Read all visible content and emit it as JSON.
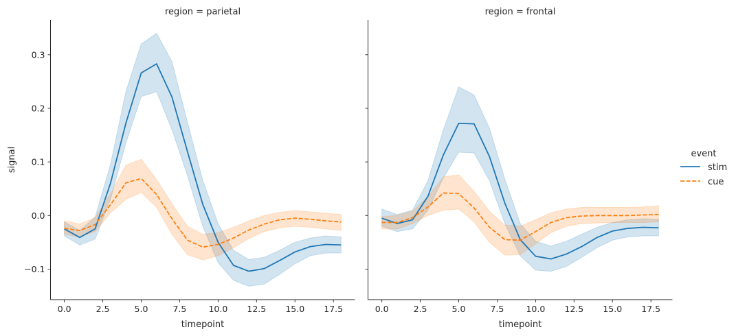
{
  "chart_data": {
    "type": "line",
    "ylabel": "signal",
    "xlabel": "timepoint",
    "xlim": [
      -0.9,
      18.9
    ],
    "ylim": [
      -0.157,
      0.365
    ],
    "xticks": [
      0,
      2.5,
      5,
      7.5,
      10,
      12.5,
      15,
      17.5
    ],
    "xtick_labels": [
      "0.0",
      "2.5",
      "5.0",
      "7.5",
      "10.0",
      "12.5",
      "15.0",
      "17.5"
    ],
    "yticks": [
      -0.1,
      0,
      0.1,
      0.2,
      0.3
    ],
    "ytick_labels": [
      "−0.1",
      "0.0",
      "0.1",
      "0.2",
      "0.3"
    ],
    "x": [
      0,
      1,
      2,
      3,
      4,
      5,
      6,
      7,
      8,
      9,
      10,
      11,
      12,
      13,
      14,
      15,
      16,
      17,
      18
    ],
    "legend": {
      "title": "event",
      "entries": [
        {
          "label": "stim",
          "color": "#1f77b4",
          "dash": "solid"
        },
        {
          "label": "cue",
          "color": "#ff7f0e",
          "dash": "dashed"
        }
      ]
    },
    "panels": [
      {
        "title": "region = parietal",
        "series": [
          {
            "name": "stim",
            "color": "#1f77b4",
            "values": [
              -0.025,
              -0.041,
              -0.025,
              0.06,
              0.172,
              0.266,
              0.283,
              0.221,
              0.12,
              0.021,
              -0.05,
              -0.093,
              -0.104,
              -0.099,
              -0.084,
              -0.068,
              -0.058,
              -0.054,
              -0.055
            ],
            "ci_low": [
              -0.038,
              -0.055,
              -0.044,
              0.03,
              0.135,
              0.222,
              0.231,
              0.16,
              0.075,
              -0.02,
              -0.088,
              -0.121,
              -0.132,
              -0.128,
              -0.11,
              -0.09,
              -0.075,
              -0.07,
              -0.07
            ],
            "ci_high": [
              -0.012,
              -0.028,
              -0.003,
              0.095,
              0.231,
              0.32,
              0.34,
              0.287,
              0.175,
              0.066,
              -0.015,
              -0.065,
              -0.082,
              -0.078,
              -0.065,
              -0.05,
              -0.042,
              -0.038,
              -0.04
            ]
          },
          {
            "name": "cue",
            "color": "#ff7f0e",
            "values": [
              -0.024,
              -0.028,
              -0.017,
              0.02,
              0.061,
              0.069,
              0.039,
              -0.006,
              -0.046,
              -0.059,
              -0.054,
              -0.042,
              -0.027,
              -0.016,
              -0.008,
              -0.005,
              -0.007,
              -0.01,
              -0.012
            ],
            "ci_low": [
              -0.035,
              -0.04,
              -0.03,
              0.005,
              0.03,
              0.043,
              0.015,
              -0.035,
              -0.073,
              -0.083,
              -0.075,
              -0.06,
              -0.043,
              -0.03,
              -0.023,
              -0.02,
              -0.022,
              -0.025,
              -0.028
            ],
            "ci_high": [
              -0.01,
              -0.016,
              -0.004,
              0.04,
              0.094,
              0.105,
              0.067,
              0.022,
              -0.02,
              -0.035,
              -0.032,
              -0.022,
              -0.01,
              0.0,
              0.006,
              0.009,
              0.007,
              0.004,
              0.002
            ]
          }
        ]
      },
      {
        "title": "region = frontal",
        "series": [
          {
            "name": "stim",
            "color": "#1f77b4",
            "values": [
              -0.005,
              -0.015,
              -0.008,
              0.036,
              0.113,
              0.172,
              0.171,
              0.11,
              0.023,
              -0.045,
              -0.076,
              -0.081,
              -0.072,
              -0.058,
              -0.041,
              -0.029,
              -0.024,
              -0.022,
              -0.023
            ],
            "ci_low": [
              -0.02,
              -0.03,
              -0.025,
              0.01,
              0.07,
              0.118,
              0.117,
              0.065,
              -0.015,
              -0.075,
              -0.102,
              -0.104,
              -0.095,
              -0.078,
              -0.06,
              -0.046,
              -0.04,
              -0.038,
              -0.038
            ],
            "ci_high": [
              0.012,
              0.002,
              0.01,
              0.065,
              0.16,
              0.24,
              0.225,
              0.163,
              0.068,
              -0.015,
              -0.048,
              -0.057,
              -0.048,
              -0.035,
              -0.022,
              -0.013,
              -0.008,
              -0.006,
              -0.007
            ]
          },
          {
            "name": "cue",
            "color": "#ff7f0e",
            "values": [
              -0.013,
              -0.013,
              -0.004,
              0.016,
              0.042,
              0.041,
              0.014,
              -0.022,
              -0.045,
              -0.046,
              -0.03,
              -0.013,
              -0.004,
              -0.001,
              0.0,
              0.0,
              0.0,
              0.001,
              0.002
            ],
            "ci_low": [
              -0.025,
              -0.025,
              -0.015,
              0.0,
              0.01,
              0.012,
              -0.012,
              -0.05,
              -0.074,
              -0.073,
              -0.053,
              -0.032,
              -0.02,
              -0.015,
              -0.014,
              -0.013,
              -0.013,
              -0.013,
              -0.012
            ],
            "ci_high": [
              -0.002,
              0.0,
              0.008,
              0.035,
              0.072,
              0.076,
              0.045,
              0.008,
              -0.018,
              -0.02,
              -0.008,
              0.005,
              0.012,
              0.015,
              0.015,
              0.015,
              0.015,
              0.016,
              0.018
            ]
          }
        ]
      }
    ]
  }
}
